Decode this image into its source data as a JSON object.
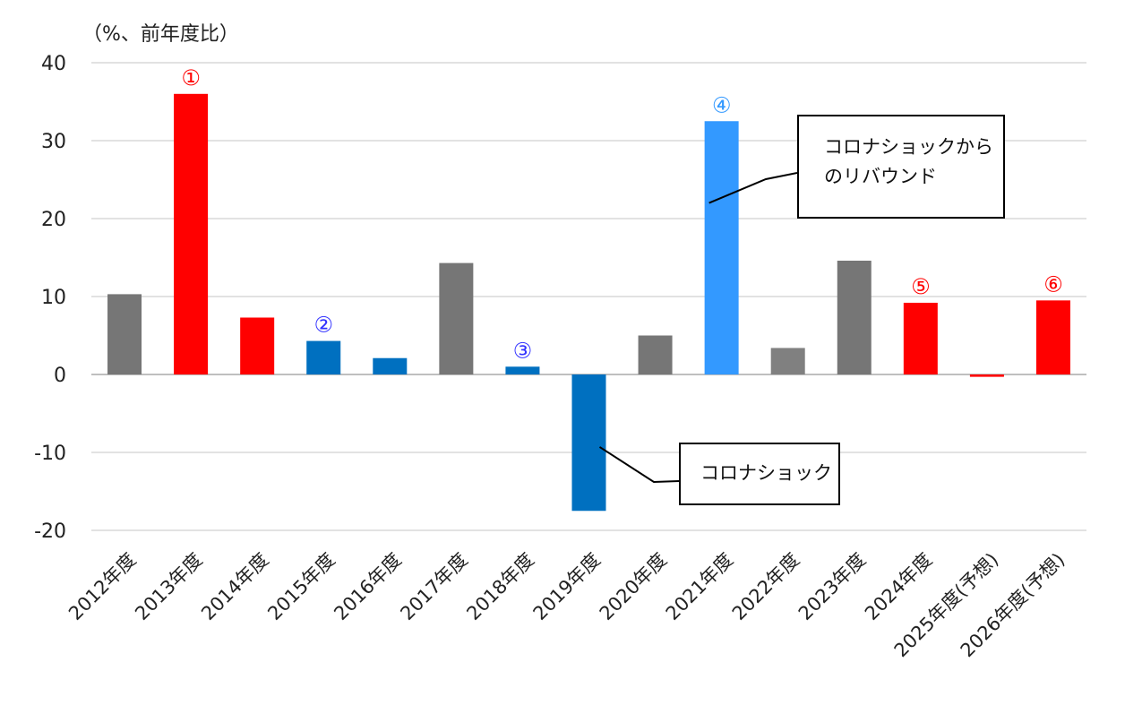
{
  "chart_data": {
    "type": "bar",
    "unit_label": "（%、前年度比）",
    "categories": [
      "2012年度",
      "2013年度",
      "2014年度",
      "2015年度",
      "2016年度",
      "2017年度",
      "2018年度",
      "2019年度",
      "2020年度",
      "2021年度",
      "2022年度",
      "2023年度",
      "2024年度",
      "2025年度(予想)",
      "2026年度(予想)"
    ],
    "values": [
      10.3,
      36.0,
      7.3,
      4.3,
      2.1,
      14.3,
      1.0,
      -17.5,
      5.0,
      32.5,
      3.4,
      14.6,
      9.2,
      -0.3,
      9.5
    ],
    "colors": [
      "#767676",
      "#ff0000",
      "#ff0000",
      "#0070c0",
      "#0070c0",
      "#767676",
      "#0070c0",
      "#0070c0",
      "#767676",
      "#3399ff",
      "#808080",
      "#767676",
      "#ff0000",
      "#ff0000",
      "#ff0000"
    ],
    "markers": [
      {
        "index": 1,
        "label": "①",
        "color": "#ff0000"
      },
      {
        "index": 3,
        "label": "②",
        "color": "#3333ff"
      },
      {
        "index": 6,
        "label": "③",
        "color": "#3333ff"
      },
      {
        "index": 9,
        "label": "④",
        "color": "#3399ff"
      },
      {
        "index": 12,
        "label": "⑤",
        "color": "#ff0000"
      },
      {
        "index": 14,
        "label": "⑥",
        "color": "#ff0000"
      }
    ],
    "ylim": [
      -20,
      40
    ],
    "yticks": [
      40,
      30,
      20,
      10,
      0,
      -10,
      -20
    ],
    "grid": true,
    "legend": "none"
  },
  "annotations": {
    "rebound_line1": "コロナショックから",
    "rebound_line2": "のリバウンド",
    "corona": "コロナショック"
  }
}
